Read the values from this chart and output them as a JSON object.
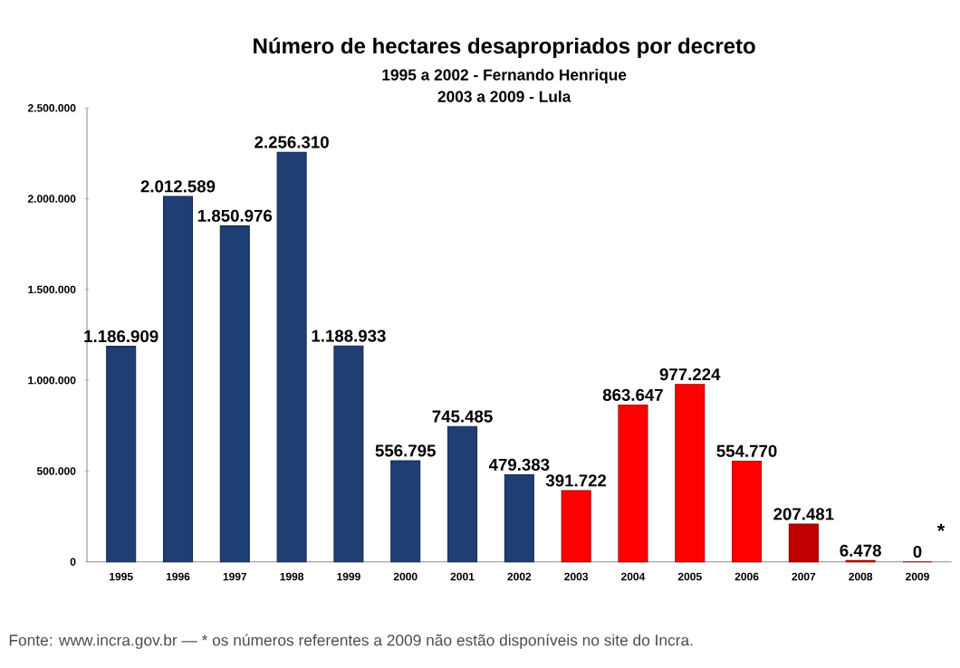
{
  "chart_data": {
    "type": "bar",
    "title": "Número de hectares desapropriados por decreto",
    "subtitle": "1995 a 2002 - Fernando Henrique",
    "categories": [
      "1995",
      "1996",
      "1997",
      "1998",
      "1999",
      "2000",
      "2001",
      "2002",
      "2003",
      "2004",
      "2005",
      "2006",
      "2007",
      "2008",
      "2009"
    ],
    "values": [
      1186909,
      2012589,
      1850976,
      2256310,
      1188933,
      556795,
      745485,
      479383,
      391722,
      863647,
      977224,
      554770,
      207481,
      6478,
      0
    ],
    "value_labels": [
      "1.186.909",
      "2.012.589",
      "1.850.976",
      "2.256.310",
      "1.188.933",
      "556.795",
      "745.485",
      "479.383",
      "391.722",
      "863.647",
      "977.224",
      "554.770",
      "207.481",
      "6.478",
      "0"
    ],
    "colors": [
      "#1f3e73",
      "#1f3e73",
      "#1f3e73",
      "#1f3e73",
      "#1f3e73",
      "#1f3e73",
      "#1f3e73",
      "#1f3e73",
      "#ff0000",
      "#ff0000",
      "#ff0000",
      "#ff0000",
      "#c00000",
      "#ff0000",
      "#ff0000"
    ],
    "ylim": [
      0,
      2500000
    ],
    "yticks": [
      {
        "value": 0,
        "label": "0"
      },
      {
        "value": 500000,
        "label": "500.000"
      },
      {
        "value": 1000000,
        "label": "1.000.000"
      },
      {
        "value": 1500000,
        "label": "1.500.000"
      },
      {
        "value": 2000000,
        "label": "2.000.000"
      },
      {
        "value": 2500000,
        "label": "2.500.000"
      }
    ],
    "annotations": [
      "2003 a 2009 - Lula",
      {
        "text": "*",
        "x": "2009",
        "y": 0
      },
      "Fonte: www.incra.gov.br — * os números referentes a 2009 não estão disponíveis no site do Incra."
    ]
  }
}
